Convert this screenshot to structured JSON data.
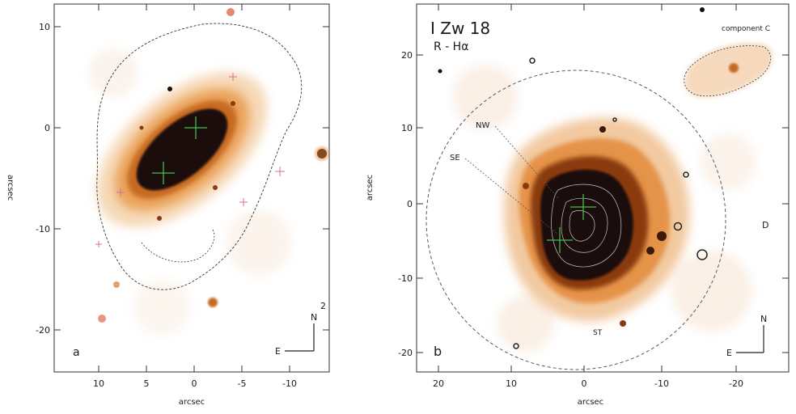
{
  "left_panel": {
    "x_ticks": [
      "10",
      "5",
      "0",
      "-5",
      "-10"
    ],
    "y_ticks": [
      "10",
      "0",
      "-10",
      "-20"
    ],
    "x_axis_label": "arcsec",
    "y_axis_label": "arcsec",
    "panel_letter": "a",
    "compass_n": "N",
    "compass_e": "E",
    "corner_mark": "2"
  },
  "right_panel": {
    "title": "I Zw 18",
    "filter": "R - Hα",
    "x_ticks": [
      "20",
      "10",
      "0",
      "-10",
      "-20"
    ],
    "y_ticks": [
      "20",
      "10",
      "0",
      "-10",
      "-20"
    ],
    "x_axis_label": "arcsec",
    "y_axis_label": "arcsec",
    "panel_letter": "b",
    "compass_n": "N",
    "compass_e": "E",
    "companion_label": "component C",
    "label_nw": "NW",
    "label_se": "SE",
    "label_d": "D",
    "label_bottom": "ST"
  },
  "colors": {
    "glow_outer": "#f2c9a0",
    "glow_mid": "#e38a3a",
    "glow_inner": "#8a3a10",
    "core": "#1a0d08",
    "cross": "#3fbf4f",
    "circle": "#55556e",
    "contour": "#333333"
  }
}
